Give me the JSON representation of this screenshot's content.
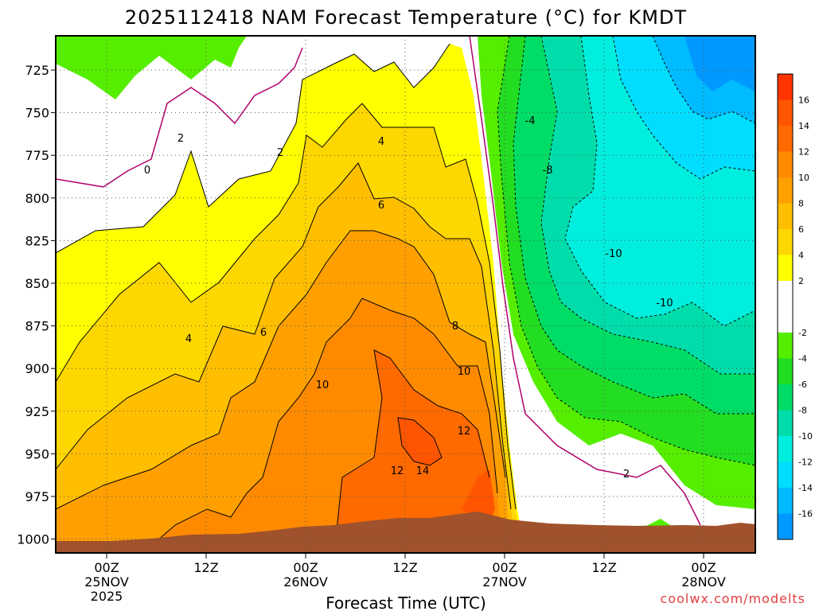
{
  "chart_data": {
    "type": "heatmap",
    "title": "2025112418 NAM Forecast Temperature (°C) for KMDT",
    "xlabel": "Forecast Time (UTC)",
    "ylabel": "",
    "y_axis": {
      "label": "",
      "scale": "pressure (hPa), inverted",
      "ticks": [
        "725",
        "750",
        "775",
        "800",
        "825",
        "850",
        "875",
        "900",
        "925",
        "950",
        "975",
        "1000"
      ]
    },
    "x_axis": {
      "ticks": [
        {
          "line1": "00Z",
          "line2": "25NOV",
          "line3": "2025"
        },
        {
          "line1": "12Z",
          "line2": "",
          "line3": ""
        },
        {
          "line1": "00Z",
          "line2": "26NOV",
          "line3": ""
        },
        {
          "line1": "12Z",
          "line2": "",
          "line3": ""
        },
        {
          "line1": "00Z",
          "line2": "27NOV",
          "line3": ""
        },
        {
          "line1": "12Z",
          "line2": "",
          "line3": ""
        },
        {
          "line1": "00Z",
          "line2": "28NOV",
          "line3": ""
        }
      ]
    },
    "grid": true,
    "colorbar": {
      "placement": "right",
      "labels": [
        "16",
        "14",
        "12",
        "10",
        "8",
        "6",
        "4",
        "2",
        "-2",
        "-4",
        "-6",
        "-8",
        "-10",
        "-12",
        "-14",
        "-16"
      ],
      "bands": [
        {
          "range": [
            16,
            18
          ],
          "color": "#ff3300"
        },
        {
          "range": [
            14,
            16
          ],
          "color": "#ff5500"
        },
        {
          "range": [
            12,
            14
          ],
          "color": "#ff6a00"
        },
        {
          "range": [
            10,
            12
          ],
          "color": "#ff8a00"
        },
        {
          "range": [
            8,
            10
          ],
          "color": "#ffa000"
        },
        {
          "range": [
            6,
            8
          ],
          "color": "#ffbe00"
        },
        {
          "range": [
            4,
            6
          ],
          "color": "#ffd700"
        },
        {
          "range": [
            2,
            4
          ],
          "color": "#ffff00"
        },
        {
          "range": [
            -2,
            2
          ],
          "color": "#ffffff"
        },
        {
          "range": [
            -4,
            -2
          ],
          "color": "#55ee00"
        },
        {
          "range": [
            -6,
            -4
          ],
          "color": "#22dd22"
        },
        {
          "range": [
            -8,
            -6
          ],
          "color": "#00dd66"
        },
        {
          "range": [
            -10,
            -8
          ],
          "color": "#00ddaa"
        },
        {
          "range": [
            -12,
            -10
          ],
          "color": "#00eedd"
        },
        {
          "range": [
            -14,
            -12
          ],
          "color": "#00ddff"
        },
        {
          "range": [
            -16,
            -14
          ],
          "color": "#00bbff"
        },
        {
          "range": [
            -18,
            -16
          ],
          "color": "#0099ff"
        }
      ]
    },
    "contour_labels": [
      "2",
      "0",
      "2",
      "4",
      "4",
      "6",
      "6",
      "8",
      "10",
      "10",
      "12",
      "12",
      "14",
      "-4",
      "-8",
      "-10",
      "-10",
      "2"
    ],
    "terrain_color": "#a0522d"
  },
  "watermark": "coolwx.com/modelts"
}
